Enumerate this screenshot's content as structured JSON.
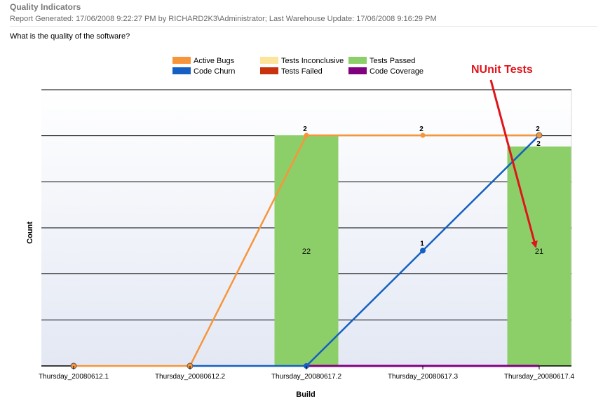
{
  "report": {
    "title": "Quality Indicators",
    "meta": "Report Generated: 17/06/2008 9:22:27 PM by RICHARD2K3\\Administrator; Last Warehouse Update: 17/06/2008 9:16:29 PM",
    "question": "What is the quality of the software?"
  },
  "annotation": {
    "text": "NUnit Tests",
    "color": "#e0141a"
  },
  "chart_data": {
    "type": "bar",
    "xlabel": "Build",
    "ylabel": "Count",
    "categories": [
      "Thursday_20080612.1",
      "Thursday_20080612.2",
      "Thursday_20080617.2",
      "Thursday_20080617.3",
      "Thursday_20080617.4"
    ],
    "grid": true,
    "legend_position": "top",
    "legend": [
      {
        "name": "Active Bugs",
        "color": "#f7953a"
      },
      {
        "name": "Tests Inconclusive",
        "color": "#fce49a"
      },
      {
        "name": "Tests Passed",
        "color": "#8ccf69"
      },
      {
        "name": "Code Churn",
        "color": "#1560c2"
      },
      {
        "name": "Tests Failed",
        "color": "#c8320c"
      },
      {
        "name": "Code Coverage",
        "color": "#800080"
      }
    ],
    "series": [
      {
        "name": "Tests Passed",
        "kind": "bar",
        "color": "#8ccf69",
        "values": [
          null,
          null,
          22,
          null,
          21
        ],
        "ylim": [
          0,
          22
        ]
      },
      {
        "name": "Active Bugs",
        "kind": "line",
        "color": "#f7953a",
        "values": [
          0,
          0,
          2,
          2,
          2
        ],
        "labels": [
          null,
          null,
          "2",
          "2",
          "2"
        ],
        "ylim": [
          0,
          2
        ]
      },
      {
        "name": "Code Churn",
        "kind": "line",
        "color": "#1560c2",
        "values": [
          null,
          0,
          0,
          1,
          2
        ],
        "labels": [
          null,
          null,
          null,
          "1",
          "2"
        ],
        "ylim": [
          0,
          2
        ]
      },
      {
        "name": "Code Coverage",
        "kind": "line",
        "color": "#800080",
        "values": [
          null,
          null,
          0,
          0,
          0
        ],
        "labels": [
          null,
          null,
          null,
          null,
          null
        ],
        "ylim": [
          0,
          2
        ]
      }
    ]
  }
}
